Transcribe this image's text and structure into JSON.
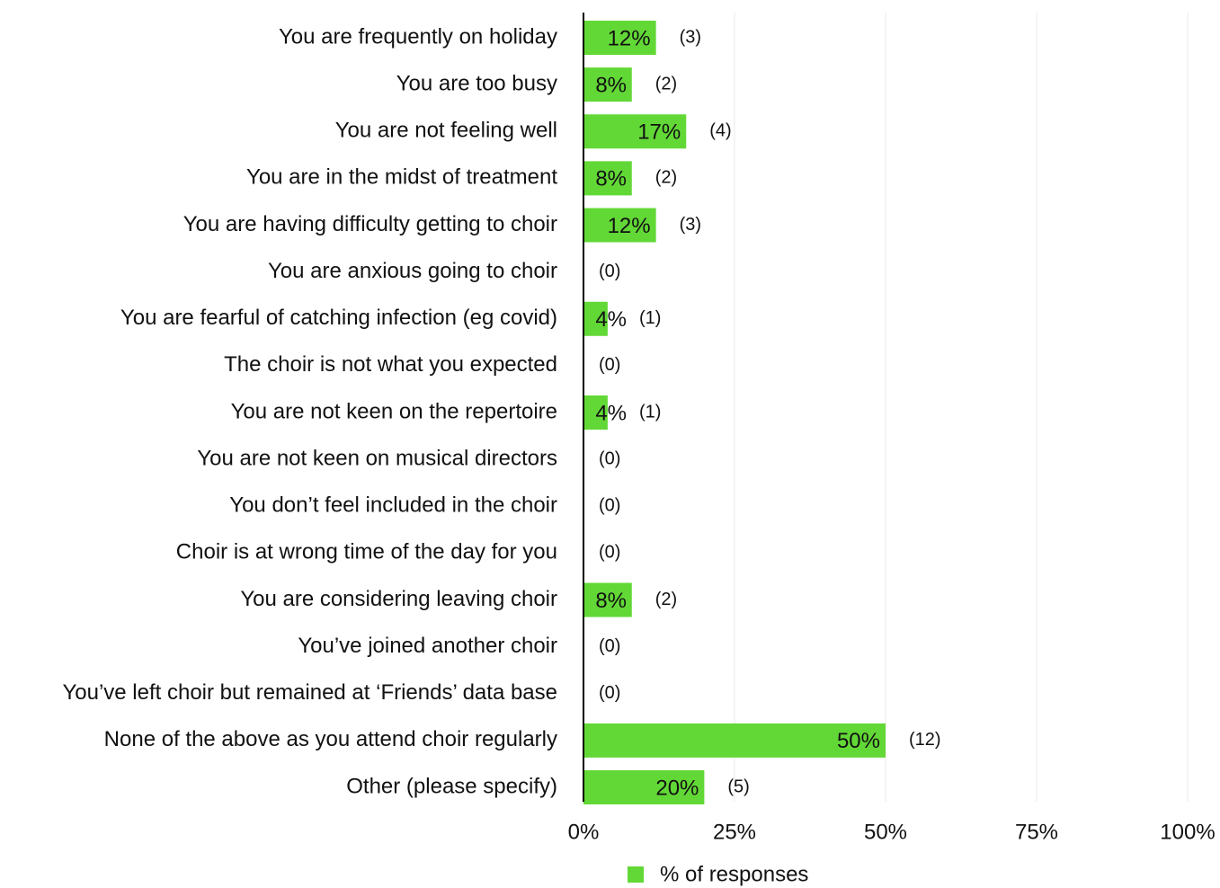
{
  "chart_data": {
    "type": "bar",
    "orientation": "horizontal",
    "categories": [
      "You are frequently on holiday",
      "You are too busy",
      "You are not feeling well",
      "You are in the midst of treatment",
      "You are having difficulty getting to choir",
      "You are anxious going to choir",
      "You are fearful of catching infection (eg covid)",
      "The choir is not what you expected",
      "You are not keen on the repertoire",
      "You are not keen on musical directors",
      "You don’t feel included in the choir",
      "Choir is at wrong time of the day for you",
      "You are considering leaving choir",
      "You’ve joined another choir",
      "You’ve left choir but remained at ‘Friends’ data base",
      "None of the above as you attend choir regularly",
      "Other (please specify)"
    ],
    "series": [
      {
        "name": "% of responses",
        "color": "#62d836",
        "values": [
          12,
          8,
          17,
          8,
          12,
          0,
          4,
          0,
          4,
          0,
          0,
          0,
          8,
          0,
          0,
          50,
          20
        ],
        "value_labels": [
          "12%",
          "8%",
          "17%",
          "8%",
          "12%",
          null,
          "4%",
          null,
          "4%",
          null,
          null,
          null,
          "8%",
          null,
          null,
          "50%",
          "20%"
        ],
        "counts": [
          3,
          2,
          4,
          2,
          3,
          0,
          1,
          0,
          1,
          0,
          0,
          0,
          2,
          0,
          0,
          12,
          5
        ],
        "count_labels": [
          "(3)",
          "(2)",
          "(4)",
          "(2)",
          "(3)",
          "(0)",
          "(1)",
          "(0)",
          "(1)",
          "(0)",
          "(0)",
          "(0)",
          "(2)",
          "(0)",
          "(0)",
          "(12)",
          "(5)"
        ]
      }
    ],
    "xlim": [
      0,
      100
    ],
    "xticks": [
      {
        "value": 0,
        "label": "0%"
      },
      {
        "value": 25,
        "label": "25%"
      },
      {
        "value": 50,
        "label": "50%"
      },
      {
        "value": 75,
        "label": "75%"
      },
      {
        "value": 100,
        "label": "100%"
      }
    ],
    "grid": true,
    "legend": "bottom"
  }
}
